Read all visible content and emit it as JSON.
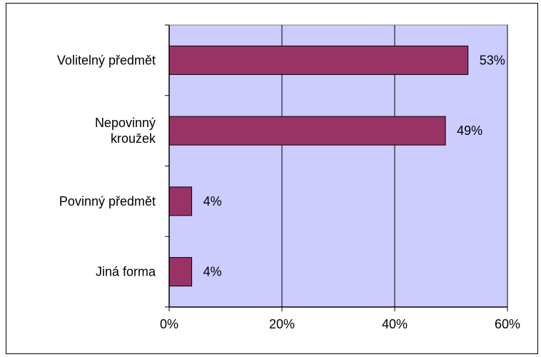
{
  "chart_data": {
    "type": "bar",
    "orientation": "horizontal",
    "categories": [
      [
        "Volitelný předmět"
      ],
      [
        "Nepovinný",
        "kroužek"
      ],
      [
        "Povinný předmět"
      ],
      [
        "Jiná forma"
      ]
    ],
    "series": [
      {
        "values": [
          53,
          49,
          4,
          4
        ]
      }
    ],
    "data_labels": [
      "53%",
      "49%",
      "4%",
      "4%"
    ],
    "x_ticks": [
      "0%",
      "20%",
      "40%",
      "60%"
    ],
    "xlim": [
      0,
      60
    ],
    "grid": "vertical",
    "legend": "none",
    "colors": {
      "bar": "#993366",
      "plot_background": "#ccccff",
      "axis": "#000000",
      "gridline": "#000000"
    }
  }
}
